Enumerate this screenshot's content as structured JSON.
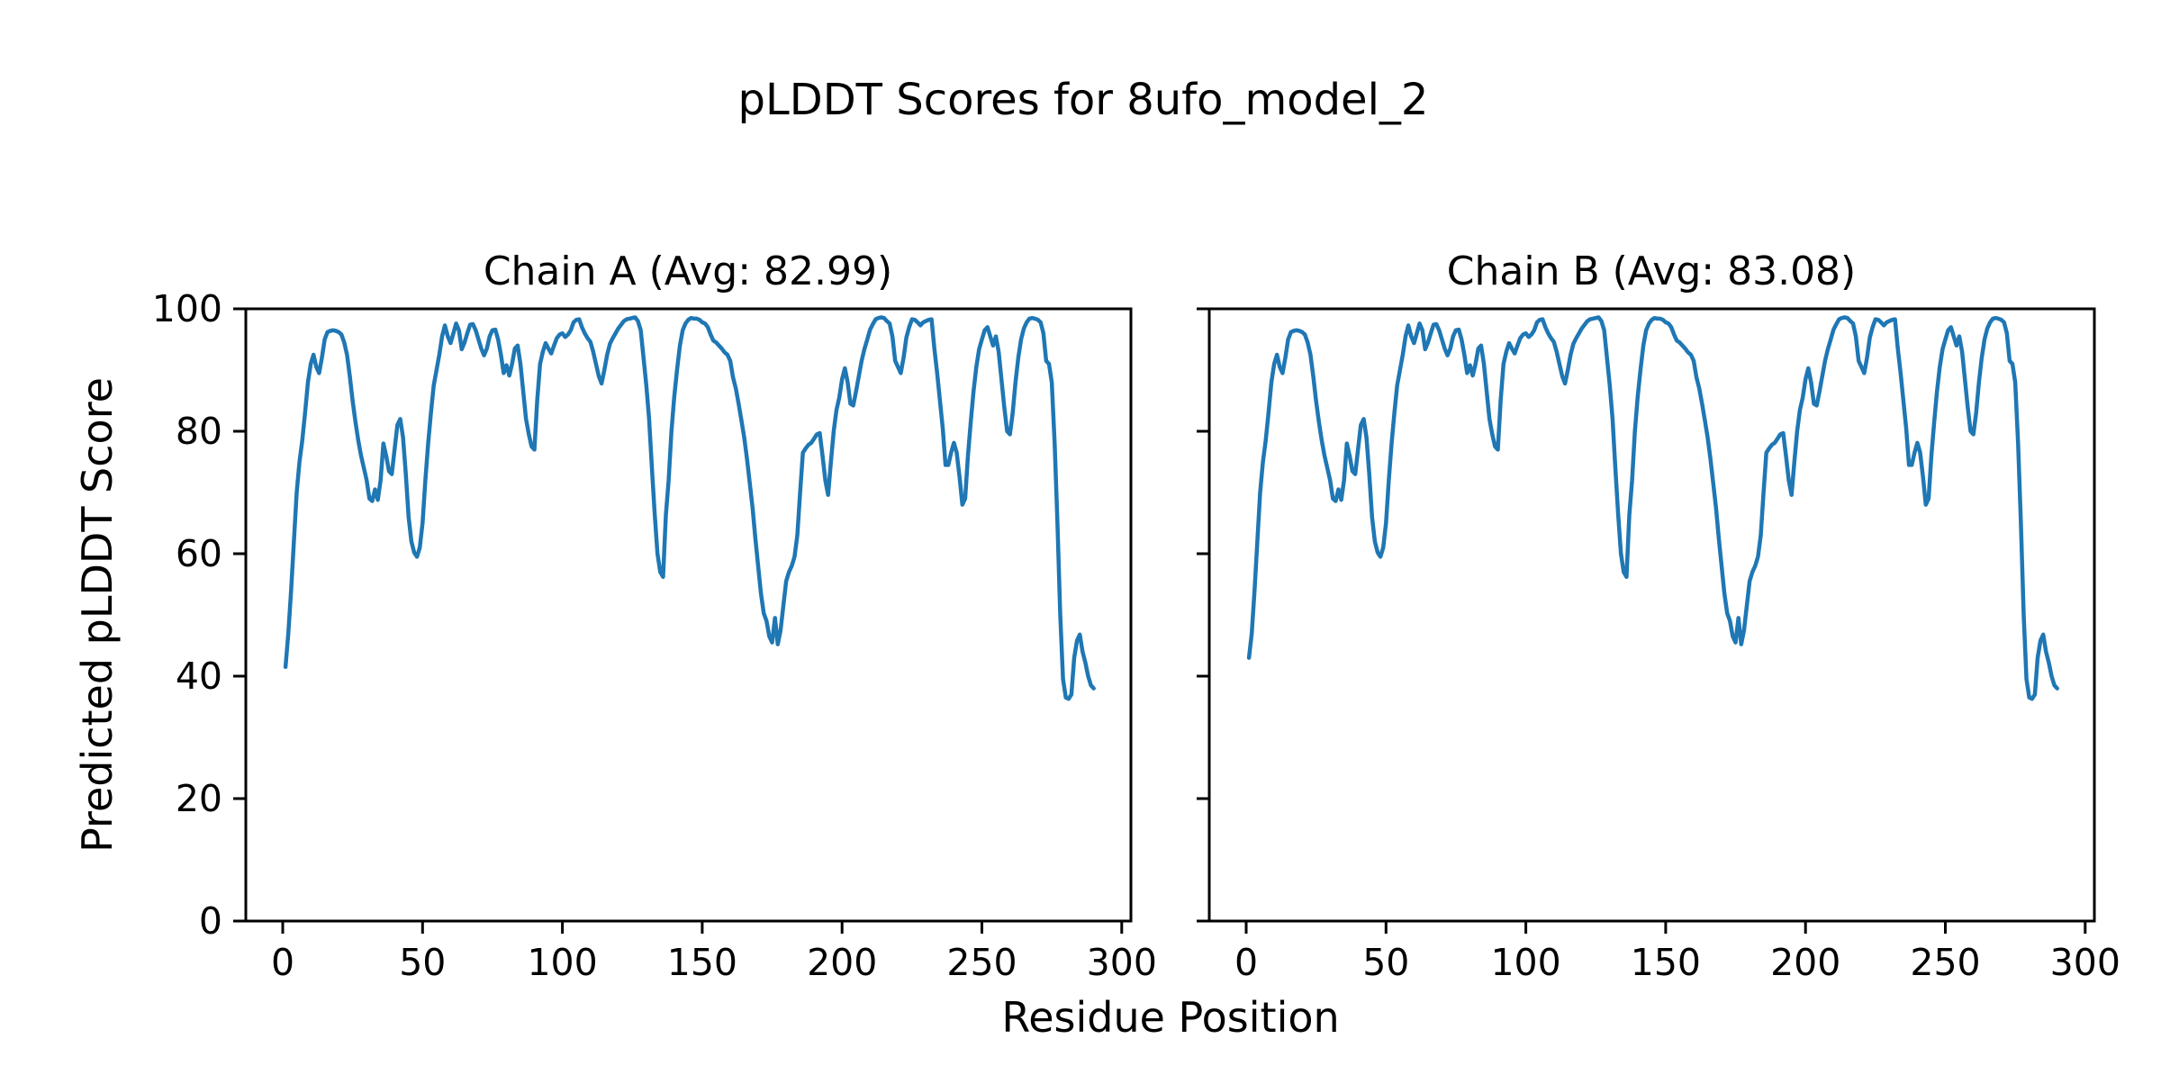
{
  "figure": {
    "suptitle": "pLDDT Scores for 8ufo_model_2",
    "background": "#ffffff",
    "text_color": "#000000",
    "spine_color": "#000000",
    "line_color": "#1f77b4"
  },
  "chart_data": {
    "type": "line",
    "title": "pLDDT Scores for 8ufo_model_2",
    "xlabel": "Residue Position",
    "ylabel": "Predicted pLDDT Score",
    "xlim": [
      -13.2,
      303.3
    ],
    "ylim": [
      0,
      100
    ],
    "xticks": [
      0,
      50,
      100,
      150,
      200,
      250,
      300
    ],
    "yticks": [
      0,
      20,
      40,
      60,
      80,
      100
    ],
    "grid": false,
    "legend": "none",
    "line_color": "#1f77b4",
    "subplots": [
      {
        "title": "Chain A (Avg: 82.99)",
        "chain": "A",
        "avg": 82.99,
        "x_range": [
          1,
          290
        ],
        "y": [
          41.5,
          47,
          54,
          62,
          70,
          75,
          78.5,
          83,
          88,
          91,
          92.5,
          90.5,
          89.5,
          92,
          95,
          96.2,
          96.4,
          96.5,
          96.4,
          96.2,
          95.8,
          94.5,
          92.5,
          89,
          85,
          81.5,
          78.5,
          76,
          74,
          72,
          69,
          68.6,
          70.5,
          68.8,
          72,
          78,
          76,
          73.5,
          73,
          77,
          81,
          82,
          79,
          73,
          66,
          62,
          60.2,
          59.5,
          61,
          65,
          72,
          78,
          83,
          87.5,
          90,
          92.5,
          95.5,
          97.3,
          95.5,
          94.4,
          96,
          97.6,
          96.5,
          93.4,
          94.5,
          96,
          97.4,
          97.5,
          96.5,
          95,
          93.5,
          92.4,
          93.5,
          95.5,
          96.5,
          96.6,
          95,
          92.5,
          89.5,
          90.8,
          89.1,
          91,
          93.5,
          94,
          91,
          86.5,
          82,
          79.5,
          77.5,
          77,
          85,
          91,
          93,
          94.4,
          93.5,
          92.7,
          94,
          95.2,
          95.8,
          96,
          95.4,
          95.8,
          96.5,
          97.8,
          98.2,
          98.3,
          97,
          96,
          95.2,
          94.6,
          93,
          91,
          89,
          87.8,
          90,
          92.5,
          94.3,
          95.2,
          96,
          96.8,
          97.4,
          98,
          98.3,
          98.4,
          98.5,
          98.6,
          98,
          96.5,
          92,
          87.5,
          82,
          74,
          66.5,
          60,
          57,
          56.2,
          66.3,
          72,
          80,
          85.6,
          90,
          94,
          96.5,
          97.6,
          98.2,
          98.5,
          98.4,
          98.4,
          98.2,
          97.8,
          97.6,
          97,
          95.8,
          94.8,
          94.5,
          94,
          93.5,
          92.9,
          92.5,
          91.5,
          88.8,
          87,
          84.5,
          81.8,
          79,
          75.5,
          71.5,
          67.5,
          62.5,
          58,
          53.5,
          50.3,
          49,
          46.5,
          45.5,
          49.5,
          45.2,
          47.5,
          51.5,
          55.5,
          57,
          58,
          59.5,
          63,
          70,
          76.5,
          77.2,
          77.8,
          78.1,
          78.8,
          79.5,
          79.7,
          76,
          72,
          69.6,
          75,
          80,
          83.5,
          85.5,
          88.5,
          90.3,
          88,
          84.5,
          84.2,
          86.5,
          89,
          91.5,
          93.4,
          95,
          96.6,
          97.5,
          98.3,
          98.5,
          98.6,
          98.5,
          98,
          97.6,
          95.5,
          91.5,
          90.5,
          89.5,
          92,
          95.3,
          97,
          98.3,
          98.2,
          97.8,
          97.3,
          97.8,
          98,
          98.2,
          98.3,
          93.5,
          89.5,
          85,
          80.5,
          74.5,
          74.5,
          76.5,
          78.1,
          76.5,
          72.5,
          68,
          69,
          76,
          81.5,
          86.5,
          90.5,
          93.4,
          95,
          96.5,
          97,
          95.5,
          94,
          95.5,
          93,
          88.5,
          84,
          80,
          79.5,
          83,
          88,
          92,
          95,
          96.8,
          97.8,
          98.4,
          98.5,
          98.4,
          98.2,
          97.8,
          96,
          91.5,
          91,
          88,
          78,
          65,
          50,
          39.5,
          36.5,
          36.3,
          37,
          43,
          45.8,
          46.8,
          44,
          42.2,
          40,
          38.5,
          38
        ]
      },
      {
        "title": "Chain B (Avg: 83.08)",
        "chain": "B",
        "avg": 83.08,
        "x_range": [
          1,
          290
        ],
        "y": [
          43,
          47,
          54,
          62,
          70,
          75,
          78.5,
          83,
          88,
          91,
          92.5,
          90.5,
          89.5,
          92,
          95,
          96.2,
          96.4,
          96.5,
          96.4,
          96.2,
          95.8,
          94.5,
          92.5,
          89,
          85,
          81.5,
          78.5,
          76,
          74,
          72,
          69,
          68.6,
          70.5,
          68.8,
          72,
          78,
          76,
          73.5,
          73,
          77,
          81,
          82,
          79,
          73,
          66,
          62,
          60.2,
          59.5,
          61,
          65,
          72,
          78,
          83,
          87.5,
          90,
          92.5,
          95.5,
          97.3,
          95.5,
          94.4,
          96,
          97.6,
          96.5,
          93.4,
          94.5,
          96,
          97.4,
          97.5,
          96.5,
          95,
          93.5,
          92.4,
          93.5,
          95.5,
          96.5,
          96.6,
          95,
          92.5,
          89.5,
          90.8,
          89.1,
          91,
          93.5,
          94,
          91,
          86.5,
          82,
          79.5,
          77.5,
          77,
          85,
          91,
          93,
          94.4,
          93.5,
          92.7,
          94,
          95.2,
          95.8,
          96,
          95.4,
          95.8,
          96.5,
          97.8,
          98.2,
          98.3,
          97,
          96,
          95.2,
          94.6,
          93,
          91,
          89,
          87.8,
          90,
          92.5,
          94.3,
          95.2,
          96,
          96.8,
          97.4,
          98,
          98.3,
          98.4,
          98.5,
          98.6,
          98,
          96.5,
          92,
          87.5,
          82,
          74,
          66.5,
          60,
          57,
          56.2,
          66.3,
          72,
          80,
          85.6,
          90,
          94,
          96.5,
          97.6,
          98.2,
          98.5,
          98.4,
          98.4,
          98.2,
          97.8,
          97.6,
          97,
          95.8,
          94.8,
          94.5,
          94,
          93.5,
          92.9,
          92.5,
          91.5,
          88.8,
          87,
          84.5,
          81.8,
          79,
          75.5,
          71.5,
          67.5,
          62.5,
          58,
          53.5,
          50.3,
          49,
          46.5,
          45.5,
          49.5,
          45.2,
          47.5,
          51.5,
          55.5,
          57,
          58,
          59.5,
          63,
          70,
          76.5,
          77.2,
          77.8,
          78.1,
          78.8,
          79.5,
          79.7,
          76,
          72,
          69.6,
          75,
          80,
          83.5,
          85.5,
          88.5,
          90.3,
          88,
          84.5,
          84.2,
          86.5,
          89,
          91.5,
          93.4,
          95,
          96.6,
          97.5,
          98.3,
          98.5,
          98.6,
          98.5,
          98,
          97.6,
          95.5,
          91.5,
          90.5,
          89.5,
          92,
          95.3,
          97,
          98.3,
          98.2,
          97.8,
          97.3,
          97.8,
          98,
          98.2,
          98.3,
          93.5,
          89.5,
          85,
          80.5,
          74.5,
          74.5,
          76.5,
          78.1,
          76.5,
          72.5,
          68,
          69,
          76,
          81.5,
          86.5,
          90.5,
          93.4,
          95,
          96.5,
          97,
          95.5,
          94,
          95.5,
          93,
          88.5,
          84,
          80,
          79.5,
          83,
          88,
          92,
          95,
          96.8,
          97.8,
          98.4,
          98.5,
          98.4,
          98.2,
          97.8,
          96,
          91.5,
          91,
          88,
          78,
          65,
          50,
          39.5,
          36.5,
          36.3,
          37,
          43,
          45.8,
          46.8,
          44,
          42.2,
          40,
          38.5,
          38
        ]
      }
    ]
  }
}
